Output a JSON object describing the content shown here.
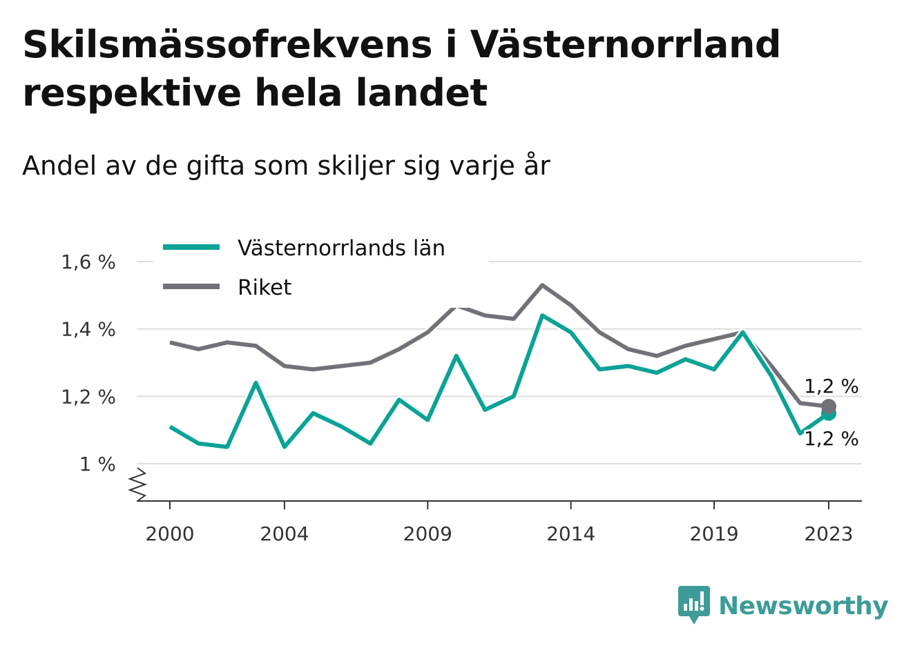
{
  "title": "Skilsmässofrekvens i Västernorrland respektive hela landet",
  "subtitle": "Andel av de gifta som skiljer sig varje år",
  "brand": {
    "name": "Newsworthy",
    "icon": "newsworthy-logo-icon"
  },
  "colors": {
    "region": "#0aa396",
    "riket": "#737178",
    "grid": "#dedede",
    "axis": "#333333"
  },
  "chart_data": {
    "type": "line",
    "x": [
      2000,
      2001,
      2002,
      2003,
      2004,
      2005,
      2006,
      2007,
      2008,
      2009,
      2010,
      2011,
      2012,
      2013,
      2014,
      2015,
      2016,
      2017,
      2018,
      2019,
      2020,
      2021,
      2022,
      2023
    ],
    "x_tick_labels": [
      "2000",
      "2004",
      "2009",
      "2014",
      "2019",
      "2023"
    ],
    "y_tick_labels": [
      "1 %",
      "1,2 %",
      "1,4 %",
      "1,6 %"
    ],
    "y_ticks": [
      1.0,
      1.2,
      1.4,
      1.6
    ],
    "ylim": [
      0.89,
      1.6
    ],
    "axis_break": true,
    "grid": true,
    "legend_position": "top-left",
    "series": [
      {
        "name": "Västernorrlands län",
        "color": "#0aa396",
        "values": [
          1.11,
          1.06,
          1.05,
          1.24,
          1.05,
          1.15,
          1.11,
          1.06,
          1.19,
          1.13,
          1.32,
          1.16,
          1.2,
          1.44,
          1.39,
          1.28,
          1.29,
          1.27,
          1.31,
          1.28,
          1.39,
          1.26,
          1.09,
          1.15
        ],
        "end_label": "1,2 %"
      },
      {
        "name": "Riket",
        "color": "#737178",
        "values": [
          1.36,
          1.34,
          1.36,
          1.35,
          1.29,
          1.28,
          1.29,
          1.3,
          1.34,
          1.39,
          1.47,
          1.44,
          1.43,
          1.53,
          1.47,
          1.39,
          1.34,
          1.32,
          1.35,
          1.37,
          1.39,
          1.29,
          1.18,
          1.17
        ],
        "end_label": "1,2 %"
      }
    ]
  }
}
